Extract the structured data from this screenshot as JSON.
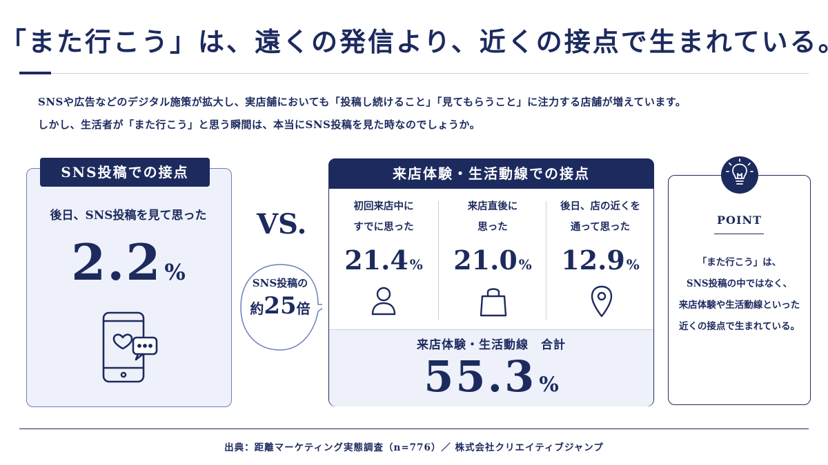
{
  "title": "「また行こう」は、遠くの発信より、近くの接点で生まれている。",
  "intro": [
    "SNSや広告などのデジタル施策が拡大し、実店舗においても「投稿し続けること」「見てもらうこと」に注力する店舗が増えています。",
    "しかし、生活者が「また行こう」と思う瞬間は、本当にSNS投稿を見た時なのでしょうか。"
  ],
  "sns": {
    "header": "SNS投稿での接点",
    "label": "後日、SNS投稿を見て思った",
    "value": "2.2",
    "unit": "%",
    "icon": "smartphone-heart-chat-icon"
  },
  "vs": "VS.",
  "comparison": {
    "line1": "SNS投稿の",
    "prefix": "約",
    "number": "25",
    "suffix": "倍"
  },
  "store": {
    "header": "来店体験・生活動線での接点",
    "columns": [
      {
        "label_line1": "初回来店中に",
        "label_line2": "すでに思った",
        "value": "21.4",
        "unit": "%",
        "icon": "person-icon"
      },
      {
        "label_line1": "来店直後に",
        "label_line2": "思った",
        "value": "21.0",
        "unit": "%",
        "icon": "shopping-bag-icon"
      },
      {
        "label_line1": "後日、店の近くを",
        "label_line2": "通って思った",
        "value": "12.9",
        "unit": "%",
        "icon": "map-pin-icon"
      }
    ],
    "total_label": "来店体験・生活動線　合計",
    "total_value": "55.3",
    "total_unit": "%"
  },
  "point": {
    "icon": "lightbulb-icon",
    "title": "POINT",
    "lines": [
      "「また行こう」は、",
      "SNS投稿の中ではなく、",
      "来店体験や生活動線といった",
      "近くの接点で生まれている。"
    ]
  },
  "source": "出典：距離マーケティング実態調査（n=776）／ 株式会社クリエイティブジャンプ",
  "colors": {
    "navy": "#1c2a5e",
    "panel_bg": "#eef1f9",
    "rule": "#c9cfdf"
  }
}
